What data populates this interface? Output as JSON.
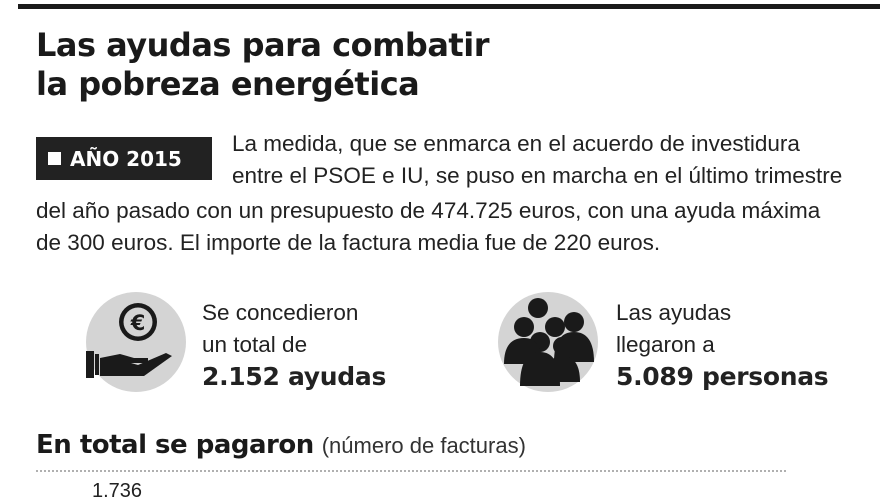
{
  "title": {
    "line1": "Las ayudas para combatir",
    "line2": "la pobreza energética"
  },
  "badge": {
    "label": "AÑO 2015"
  },
  "intro": {
    "line1": "La medida, que se enmarca en el acuerdo de investidura",
    "line2": "entre el PSOE e IU, se puso en marcha en el último trimestre",
    "line3": "del año pasado con un presupuesto de 474.725 euros, con una ayuda máxima",
    "line4": "de 300 euros. El importe de la factura media fue de 220 euros."
  },
  "stats": [
    {
      "icon": "euro-hand-icon",
      "line1": "Se concedieron",
      "line2": "un total de",
      "value": "2.152 ayudas"
    },
    {
      "icon": "people-group-icon",
      "line1": "Las ayudas",
      "line2": "llegaron a",
      "value": "5.089 personas"
    }
  ],
  "section": {
    "title": "En total se pagaron",
    "subtitle": "(número de facturas)",
    "first_value": "1.736"
  },
  "colors": {
    "ink": "#1a1a1a",
    "badge_bg": "#222222",
    "icon_circle": "#d4d4d4"
  }
}
